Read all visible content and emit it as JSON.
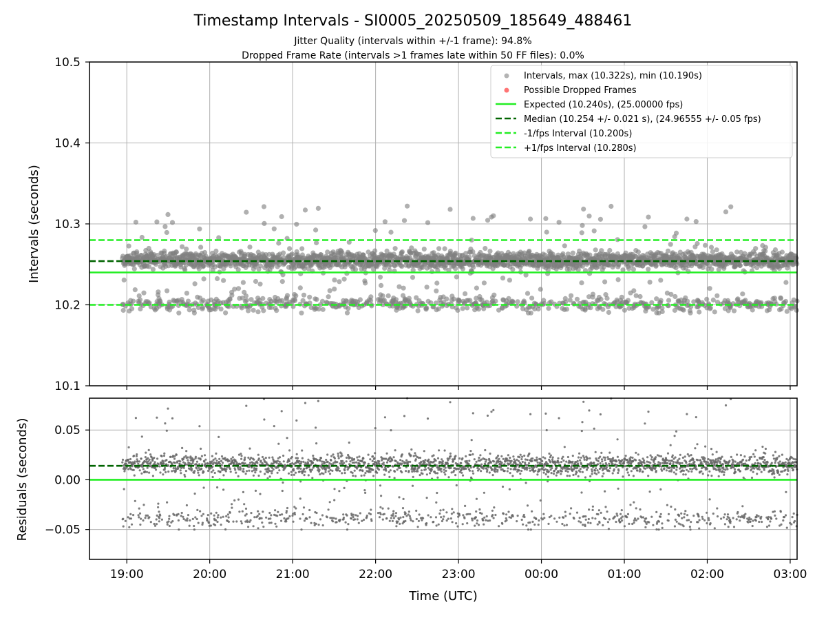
{
  "figure": {
    "title": "Timestamp Intervals - SI0005_20250509_185649_488461",
    "subtitle_1": "Jitter Quality (intervals within +/-1 frame): 94.8%",
    "subtitle_2": "Dropped Frame Rate (intervals >1 frames late within 50 FF files): 0.0%"
  },
  "colors": {
    "points": "#808080",
    "dropped": "#ff5c5c",
    "expected": "#22ee22",
    "median": "#006400",
    "bound": "#22ee22",
    "grid": "#b0b0b0"
  },
  "chart_data": [
    {
      "type": "scatter",
      "title": "Timestamp Intervals - SI0005_20250509_185649_488461",
      "xlabel": "",
      "ylabel": "Intervals (seconds)",
      "x_ticks": [
        "19:00",
        "20:00",
        "21:00",
        "22:00",
        "23:00",
        "00:00",
        "01:00",
        "02:00",
        "03:00"
      ],
      "x_range": [
        "2025-05-09T18:33",
        "2025-05-10T03:05"
      ],
      "ylim": [
        10.1,
        10.5
      ],
      "y_ticks": [
        "10.1",
        "10.2",
        "10.3",
        "10.4",
        "10.5"
      ],
      "grid": true,
      "legend_position": "top-right",
      "legend": [
        "Intervals, max (10.322s), min (10.190s)",
        "Possible Dropped Frames",
        "Expected (10.240s), (25.00000 fps)",
        "Median (10.254 +/- 0.021 s), (24.96555 +/- 0.05 fps)",
        "-1/fps Interval (10.200s)",
        "+1/fps Interval (10.280s)"
      ],
      "reference_lines": {
        "expected": 10.24,
        "median": 10.254,
        "minus_one_frame": 10.2,
        "plus_one_frame": 10.28
      },
      "series": [
        {
          "name": "Intervals, max (10.322s), min (10.190s)",
          "x_start": "2025-05-09T18:56:49",
          "x_end": "2025-05-10T03:05",
          "count": 2860,
          "main_band": [
            10.245,
            10.265
          ],
          "lower_band": [
            10.192,
            10.21
          ],
          "max": 10.322,
          "min": 10.19
        },
        {
          "name": "Possible Dropped Frames",
          "count": 0
        }
      ]
    },
    {
      "type": "scatter",
      "xlabel": "Time (UTC)",
      "ylabel": "Residuals (seconds)",
      "x_ticks": [
        "19:00",
        "20:00",
        "21:00",
        "22:00",
        "23:00",
        "00:00",
        "01:00",
        "02:00",
        "03:00"
      ],
      "x_range": [
        "2025-05-09T18:33",
        "2025-05-10T03:05"
      ],
      "ylim": [
        -0.08,
        0.082
      ],
      "y_ticks": [
        "−0.05",
        "0.00",
        "0.05"
      ],
      "grid": true,
      "reference_lines": {
        "zero": 0.0,
        "median_residual": 0.014
      },
      "series": [
        {
          "name": "Residuals",
          "main_band": [
            0.005,
            0.025
          ],
          "lower_band": [
            -0.048,
            -0.03
          ],
          "max": 0.082,
          "min": -0.05
        }
      ]
    }
  ]
}
